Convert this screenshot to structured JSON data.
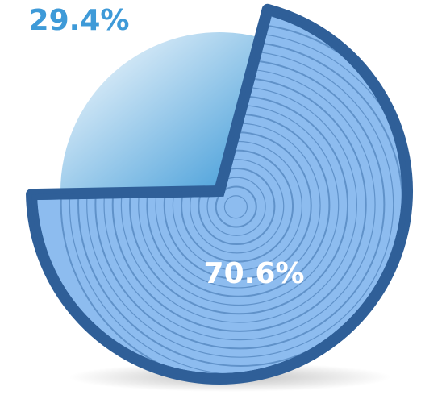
{
  "chart_data": {
    "type": "pie",
    "values": [
      29.4,
      70.6
    ],
    "value_labels": [
      "29.4%",
      "70.6%"
    ],
    "colors": [
      "#3e9ad8",
      "#8dbcef"
    ],
    "label_colors": [
      "#3e9ad8",
      "#ffffff"
    ]
  }
}
